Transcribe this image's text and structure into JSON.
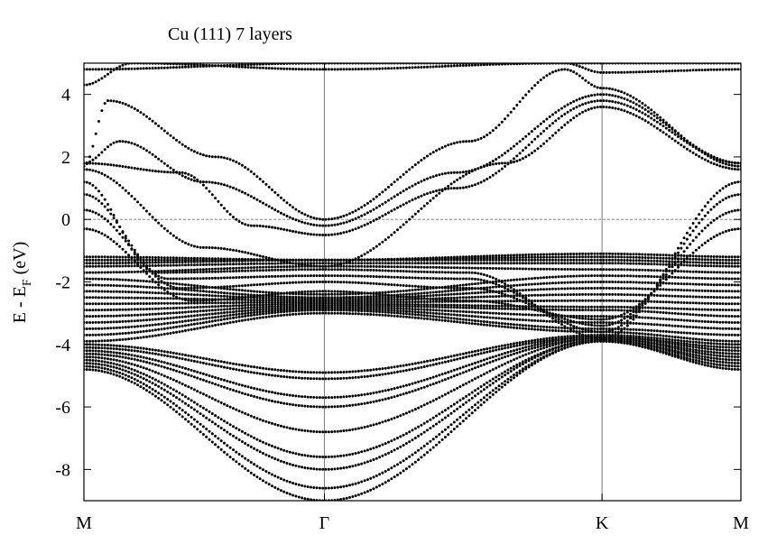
{
  "chart_data": {
    "type": "scatter",
    "title": "Cu (111) 7 layers",
    "xlabel": "",
    "ylabel": {
      "main": "E - E",
      "subscript": "F",
      "unit": " (eV)"
    },
    "x_ticks": [
      {
        "label": "M",
        "k": 0
      },
      {
        "label": "Γ",
        "k": 1
      },
      {
        "label": "K",
        "k": 2.1547
      },
      {
        "label": "M",
        "k": 2.7321
      }
    ],
    "xlim": [
      0,
      2.7321
    ],
    "ylim": [
      -9,
      5
    ],
    "y_ticks": [
      4,
      2,
      0,
      -2,
      -4,
      -6,
      -8
    ],
    "fermi_level": 0,
    "grid": false,
    "legend": "none",
    "marker_color": "#000000",
    "bands": [
      {
        "k": [
          0,
          1,
          2.1547,
          2.7321
        ],
        "E": [
          -4.8,
          -9.0,
          -3.9,
          -4.8
        ]
      },
      {
        "k": [
          0,
          1,
          2.1547,
          2.7321
        ],
        "E": [
          -4.7,
          -8.6,
          -3.9,
          -4.7
        ]
      },
      {
        "k": [
          0,
          1,
          2.1547,
          2.7321
        ],
        "E": [
          -4.6,
          -8.0,
          -3.85,
          -4.6
        ]
      },
      {
        "k": [
          0,
          1,
          2.1547,
          2.7321
        ],
        "E": [
          -4.5,
          -7.6,
          -3.85,
          -4.5
        ]
      },
      {
        "k": [
          0,
          1,
          2.1547,
          2.7321
        ],
        "E": [
          -4.4,
          -6.8,
          -3.8,
          -4.4
        ]
      },
      {
        "k": [
          0,
          1,
          2.1547,
          2.7321
        ],
        "E": [
          -4.3,
          -6.0,
          -3.8,
          -4.3
        ]
      },
      {
        "k": [
          0,
          1,
          2.1547,
          2.7321
        ],
        "E": [
          -4.2,
          -5.7,
          -3.75,
          -4.2
        ]
      },
      {
        "k": [
          0,
          1,
          2.1547,
          2.7321
        ],
        "E": [
          -4.1,
          -5.1,
          -3.75,
          -4.1
        ]
      },
      {
        "k": [
          0,
          1,
          2.1547,
          2.7321
        ],
        "E": [
          -4.0,
          -4.9,
          -3.7,
          -4.0
        ]
      },
      {
        "k": [
          0,
          1,
          2.1547,
          2.7321
        ],
        "E": [
          -3.9,
          -3.0,
          -3.6,
          -3.9
        ]
      },
      {
        "k": [
          0,
          1,
          2.1547,
          2.7321
        ],
        "E": [
          -3.7,
          -2.9,
          -3.5,
          -3.7
        ]
      },
      {
        "k": [
          0,
          1,
          2.1547,
          2.7321
        ],
        "E": [
          -3.5,
          -2.85,
          -3.3,
          -3.5
        ]
      },
      {
        "k": [
          0,
          1,
          2.1547,
          2.7321
        ],
        "E": [
          -3.3,
          -2.8,
          -3.1,
          -3.3
        ]
      },
      {
        "k": [
          0,
          1,
          2.1547,
          2.7321
        ],
        "E": [
          -3.1,
          -2.75,
          -2.9,
          -3.1
        ]
      },
      {
        "k": [
          0,
          1,
          2.1547,
          2.7321
        ],
        "E": [
          -2.9,
          -2.7,
          -2.8,
          -2.9
        ]
      },
      {
        "k": [
          0,
          1,
          2.1547,
          2.7321
        ],
        "E": [
          -2.7,
          -2.65,
          -2.6,
          -2.7
        ]
      },
      {
        "k": [
          0,
          1,
          2.1547,
          2.7321
        ],
        "E": [
          -2.5,
          -2.6,
          -2.4,
          -2.5
        ]
      },
      {
        "k": [
          0,
          1,
          2.1547,
          2.7321
        ],
        "E": [
          -2.3,
          -2.55,
          -2.2,
          -2.3
        ]
      },
      {
        "k": [
          0,
          1,
          2.1547,
          2.7321
        ],
        "E": [
          -2.1,
          -2.5,
          -2.0,
          -2.1
        ]
      },
      {
        "k": [
          0,
          1,
          2.1547,
          2.7321
        ],
        "E": [
          -1.9,
          -2.4,
          -1.8,
          -1.9
        ]
      },
      {
        "k": [
          0,
          1,
          2.1547,
          2.7321
        ],
        "E": [
          -1.7,
          -1.5,
          -1.6,
          -1.7
        ]
      },
      {
        "k": [
          0,
          1,
          2.1547,
          2.7321
        ],
        "E": [
          -1.5,
          -1.4,
          -1.4,
          -1.5
        ]
      },
      {
        "k": [
          0,
          1,
          2.1547,
          2.7321
        ],
        "E": [
          -1.4,
          -1.3,
          -1.3,
          -1.4
        ]
      },
      {
        "k": [
          0,
          1,
          2.1547,
          2.7321
        ],
        "E": [
          -1.3,
          -1.3,
          -1.2,
          -1.3
        ]
      },
      {
        "k": [
          0,
          1,
          2.1547,
          2.7321
        ],
        "E": [
          -1.2,
          -1.3,
          -1.1,
          -1.2
        ]
      },
      {
        "k": [
          0,
          0.45,
          1,
          1.6,
          2.1547,
          2.7321
        ],
        "E": [
          -0.3,
          -2.6,
          -2.3,
          -2.6,
          -3.2,
          -0.3
        ]
      },
      {
        "k": [
          0,
          0.4,
          1,
          1.6,
          2.1547,
          2.7321
        ],
        "E": [
          0.3,
          -2.2,
          -2.0,
          -2.2,
          -3.4,
          0.3
        ]
      },
      {
        "k": [
          0,
          0.35,
          1,
          1.6,
          2.1547,
          2.7321
        ],
        "E": [
          0.8,
          -1.9,
          -1.8,
          -1.9,
          -3.6,
          0.8
        ]
      },
      {
        "k": [
          0,
          0.3,
          1,
          1.6,
          2.1547,
          2.7321
        ],
        "E": [
          1.2,
          -1.7,
          -1.6,
          -1.7,
          -3.8,
          1.2
        ]
      },
      {
        "k": [
          0,
          0.5,
          1,
          1.75,
          2.1547,
          2.7321
        ],
        "E": [
          1.6,
          -0.9,
          -1.5,
          1.8,
          3.6,
          1.6
        ]
      },
      {
        "k": [
          0,
          0.4,
          0.7,
          1,
          1.55,
          2.1547,
          2.7321
        ],
        "E": [
          1.8,
          1.5,
          -0.2,
          -0.5,
          1.0,
          3.8,
          1.8
        ]
      },
      {
        "k": [
          0,
          0.15,
          0.5,
          1,
          1.55,
          2.1547,
          2.7321
        ],
        "E": [
          1.8,
          2.5,
          1.2,
          -0.2,
          1.5,
          4.0,
          1.8
        ]
      },
      {
        "k": [
          0,
          0.1,
          0.55,
          1,
          1.6,
          2.0,
          2.1547,
          2.7321
        ],
        "E": [
          1.7,
          3.8,
          2.0,
          0.0,
          2.5,
          4.8,
          4.2,
          1.7
        ]
      },
      {
        "k": [
          0,
          0.2,
          1,
          2.0,
          2.1547,
          2.7321
        ],
        "E": [
          4.3,
          5.0,
          4.8,
          5.0,
          4.7,
          4.8
        ]
      },
      {
        "k": [
          0,
          1,
          2.1547,
          2.7321
        ],
        "E": [
          4.8,
          5.0,
          5.0,
          5.0
        ]
      }
    ]
  }
}
